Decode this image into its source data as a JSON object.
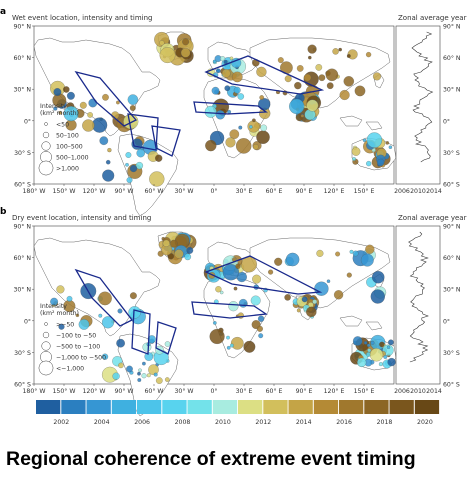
{
  "panels": [
    {
      "letter": "a",
      "title": "Wet event location, intensity and timing",
      "zonal_title": "Zonal average year",
      "legend": {
        "title_line1": "Intensity",
        "title_line2": "(km² month)",
        "items": [
          "<50",
          "50–100",
          "100–500",
          "500–1,000",
          ">1,000"
        ]
      }
    },
    {
      "letter": "b",
      "title": "Dry event location, intensity and timing",
      "zonal_title": "Zonal average year",
      "legend": {
        "title_line1": "Intensity",
        "title_line2": "(km² month)",
        "items": [
          ">−50",
          "−100 to −50",
          "−500 to −100",
          "−1,000 to −500",
          "<−1,000"
        ]
      }
    }
  ],
  "lat_ticks": [
    "90° N",
    "60° N",
    "30° N",
    "0°",
    "30° S",
    "60° S"
  ],
  "lon_ticks": [
    "180° W",
    "150° W",
    "120° W",
    "90° W",
    "60° W",
    "30° W",
    "0°",
    "30° E",
    "60° E",
    "90° E",
    "120° E",
    "150° E"
  ],
  "zonal_ticks": [
    "2006",
    "2010",
    "2014"
  ],
  "colorbar": {
    "labels": [
      "2002",
      "2004",
      "2006",
      "2008",
      "2010",
      "2012",
      "2014",
      "2016",
      "2018",
      "2020"
    ],
    "colors": [
      "#1f5fa0",
      "#2b7fc0",
      "#3696d3",
      "#3fb0e0",
      "#4cc4ea",
      "#58d3ee",
      "#73e2ea",
      "#a8ece0",
      "#dcdf84",
      "#d2bf5c",
      "#c4a446",
      "#b48a35",
      "#a0782d",
      "#8c6624",
      "#7a561d",
      "#684816"
    ]
  },
  "caption": "Regional coherence of extreme event timing"
}
